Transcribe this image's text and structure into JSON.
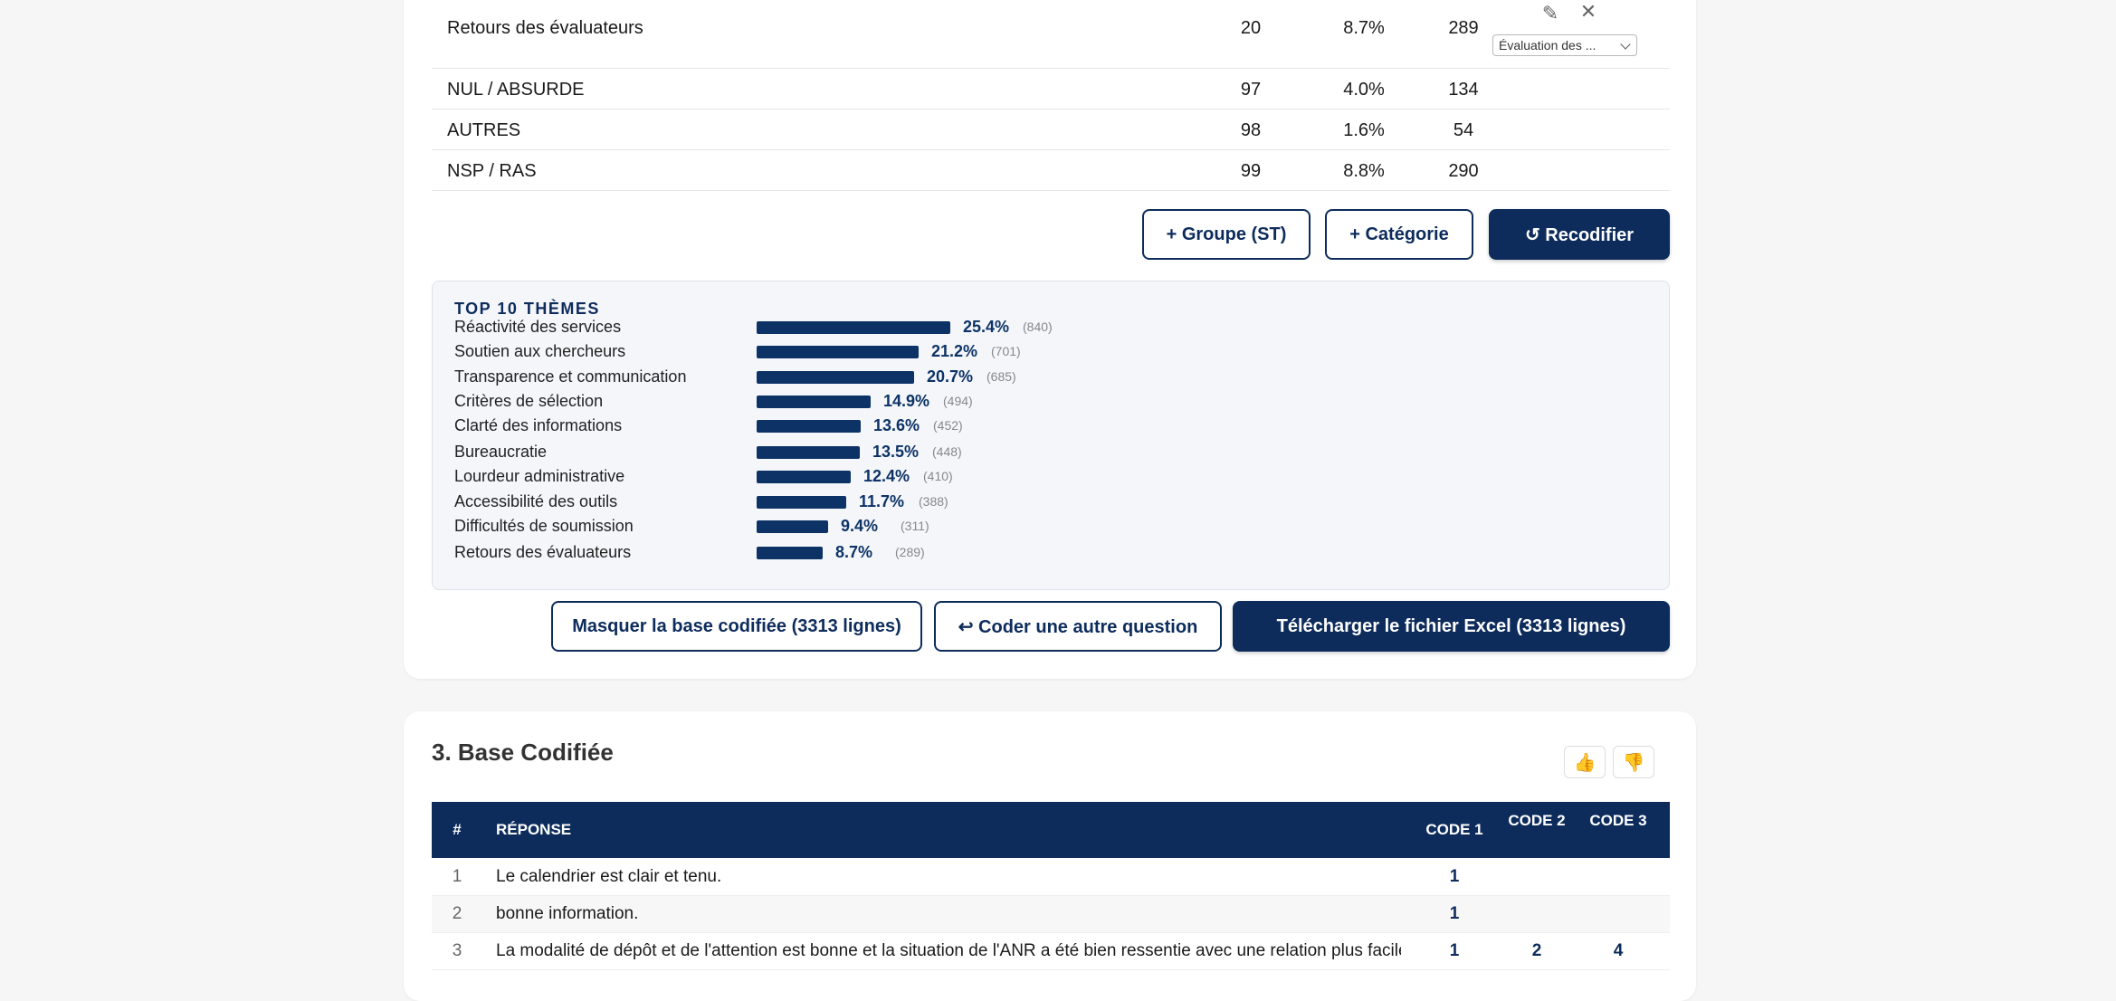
{
  "code_rows": [
    {
      "label": "Retours des évaluateurs",
      "code": "20",
      "pct": "8.7%",
      "count": "289"
    },
    {
      "label": "NUL / ABSURDE",
      "code": "97",
      "pct": "4.0%",
      "count": "134"
    },
    {
      "label": "AUTRES",
      "code": "98",
      "pct": "1.6%",
      "count": "54"
    },
    {
      "label": "NSP / RAS",
      "code": "99",
      "pct": "8.8%",
      "count": "290"
    }
  ],
  "row_actions": {
    "select_value": "Évaluation des ..."
  },
  "buttons": {
    "add_group": "+ Groupe (ST)",
    "add_category": "+ Catégorie",
    "recode": "↺ Recodifier",
    "hide_base": "Masquer la base codifiée (3313 lignes)",
    "code_other": "↩ Coder une autre question",
    "download": "Télécharger le fichier Excel (3313 lignes)"
  },
  "top_themes": {
    "title": "TOP 10 THÈMES",
    "items": [
      {
        "name": "Réactivité des services",
        "pct_value": 25.4,
        "pct": "25.4%",
        "count": "(840)"
      },
      {
        "name": "Soutien aux chercheurs",
        "pct_value": 21.2,
        "pct": "21.2%",
        "count": "(701)"
      },
      {
        "name": "Transparence et communication",
        "pct_value": 20.7,
        "pct": "20.7%",
        "count": "(685)"
      },
      {
        "name": "Critères de sélection",
        "pct_value": 14.9,
        "pct": "14.9%",
        "count": "(494)"
      },
      {
        "name": "Clarté des informations",
        "pct_value": 13.6,
        "pct": "13.6%",
        "count": "(452)"
      },
      {
        "name": "Bureaucratie",
        "pct_value": 13.5,
        "pct": "13.5%",
        "count": "(448)"
      },
      {
        "name": "Lourdeur administrative",
        "pct_value": 12.4,
        "pct": "12.4%",
        "count": "(410)"
      },
      {
        "name": "Accessibilité des outils",
        "pct_value": 11.7,
        "pct": "11.7%",
        "count": "(388)"
      },
      {
        "name": "Difficultés de soumission",
        "pct_value": 9.4,
        "pct": "9.4%",
        "count": "(311)"
      },
      {
        "name": "Retours des évaluateurs",
        "pct_value": 8.7,
        "pct": "8.7%",
        "count": "(289)"
      }
    ]
  },
  "section": {
    "title": "3. Base Codifiée",
    "thumb_up": "👍",
    "thumb_down": "👎"
  },
  "base_table": {
    "headers": {
      "num": "#",
      "response": "RÉPONSE",
      "code1": "CODE 1",
      "code2": "CODE 2",
      "code3": "CODE 3"
    },
    "rows": [
      {
        "num": "1",
        "text": "Le calendrier est clair et tenu.",
        "c1": "1",
        "c2": "",
        "c3": ""
      },
      {
        "num": "2",
        "text": "bonne information.",
        "c1": "1",
        "c2": "",
        "c3": ""
      },
      {
        "num": "3",
        "text": "La modalité de dépôt et de l'attention est bonne et la situation de l'ANR a été bien ressentie avec une relation plus facile",
        "c1": "1",
        "c2": "2",
        "c3": "4"
      }
    ]
  },
  "colors": {
    "primary": "#0d2c5c",
    "bar": "#0d3366"
  }
}
